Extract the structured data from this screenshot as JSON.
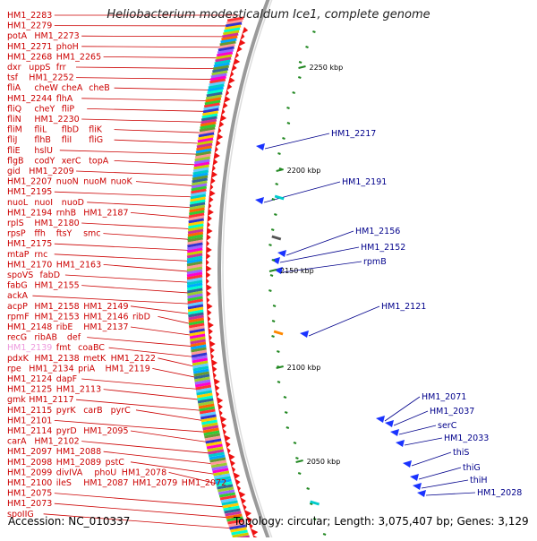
{
  "title": "Heliobacterium modesticaldum Ice1, complete genome",
  "footer": {
    "accession": "Accession: NC_010337",
    "summary": "Topology: circular; Length: 3,075,407 bp; Genes: 3,129"
  },
  "colors": {
    "left_label": "#cc0000",
    "left_label_faded": "#ee99dd",
    "right_label": "#00008b",
    "backbone": "#888888",
    "tick_dash": "#228822",
    "gene_arrow": "#ee1111"
  },
  "scale_ticks": [
    "2250 kbp",
    "2200 kbp",
    "2150 kbp",
    "2100 kbp",
    "2050 kbp"
  ],
  "left_labels": [
    [
      "HM1_2283"
    ],
    [
      "HM1_2279"
    ],
    [
      "potA",
      "HM1_2273"
    ],
    [
      "HM1_2271",
      "phoH"
    ],
    [
      "HM1_2268",
      "HM1_2265"
    ],
    [
      "dxr",
      "uppS",
      "frr"
    ],
    [
      "tsf",
      "HM1_2252"
    ],
    [
      "fliA",
      "cheW",
      "cheA",
      "cheB"
    ],
    [
      "HM1_2244",
      "flhA"
    ],
    [
      "fliQ",
      "cheY",
      "fliP"
    ],
    [
      "fliN",
      "HM1_2230"
    ],
    [
      "fliM",
      "fliL",
      "flbD",
      "fliK"
    ],
    [
      "fliJ",
      "flhB",
      "fliI",
      "fliG"
    ],
    [
      "fliE",
      "hslU"
    ],
    [
      "flgB",
      "codY",
      "xerC",
      "topA"
    ],
    [
      "gid",
      "HM1_2209"
    ],
    [
      "HM1_2207",
      "nuoN",
      "nuoM",
      "nuoK"
    ],
    [
      "HM1_2195"
    ],
    [
      "nuoL",
      "nuoI",
      "nuoD"
    ],
    [
      "HM1_2194",
      "rnhB",
      "HM1_2187"
    ],
    [
      "rplS",
      "HM1_2180"
    ],
    [
      "rpsP",
      "ffh",
      "ftsY",
      "smc"
    ],
    [
      "HM1_2175"
    ],
    [
      "mtaP",
      "rnc"
    ],
    [
      "HM1_2170",
      "HM1_2163"
    ],
    [
      "spoVS",
      "fabD"
    ],
    [
      "fabG",
      "HM1_2155"
    ],
    [
      "ackA"
    ],
    [
      "acpP",
      "HM1_2158",
      "HM1_2149"
    ],
    [
      "rpmF",
      "HM1_2153",
      "HM1_2146",
      "ribD"
    ],
    [
      "HM1_2148",
      "ribE",
      "HM1_2137"
    ],
    [
      "recG",
      "ribAB",
      "def"
    ],
    [
      "HM1_2139",
      "fmt",
      "coaBC"
    ],
    [
      "pdxK",
      "HM1_2138",
      "metK",
      "HM1_2122"
    ],
    [
      "rpe",
      "HM1_2134",
      "priA",
      "HM1_2119"
    ],
    [
      "HM1_2124",
      "dapF"
    ],
    [
      "HM1_2125",
      "HM1_2113"
    ],
    [
      "gmk",
      "HM1_2117"
    ],
    [
      "HM1_2115",
      "pyrK",
      "carB",
      "pyrC"
    ],
    [
      "HM1_2101"
    ],
    [
      "HM1_2114",
      "pyrD",
      "HM1_2095"
    ],
    [
      "carA",
      "HM1_2102"
    ],
    [
      "HM1_2097",
      "HM1_2088"
    ],
    [
      "HM1_2098",
      "HM1_2089",
      "pstC"
    ],
    [
      "HM1_2099",
      "divIVA",
      "phoU",
      "HM1_2078"
    ],
    [
      "HM1_2100",
      "ileS",
      "HM1_2087",
      "HM1_2079",
      "HM1_2072"
    ],
    [
      "HM1_2075"
    ],
    [
      "HM1_2073"
    ],
    [
      "spoIIG"
    ]
  ],
  "right_labels": [
    "HM1_2217",
    "HM1_2191",
    "HM1_2156",
    "HM1_2152",
    "rpmB",
    "HM1_2121",
    "HM1_2071",
    "HM1_2037",
    "serC",
    "HM1_2033",
    "thiS",
    "thiG",
    "thiH",
    "HM1_2028"
  ]
}
